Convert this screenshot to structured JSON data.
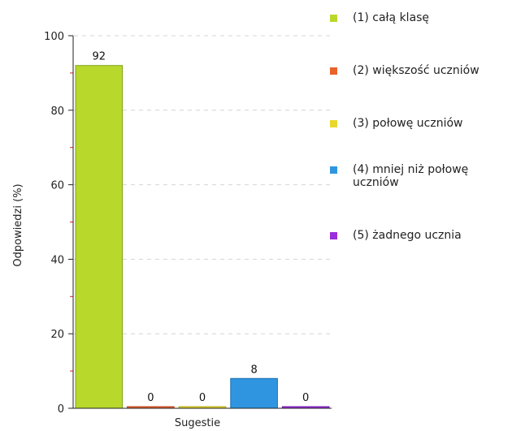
{
  "chart_data": {
    "type": "bar",
    "xlabel": "Sugestie",
    "ylabel": "Odpowiedzi (%)",
    "ylim": [
      0,
      100
    ],
    "yticks": [
      0,
      20,
      40,
      60,
      80,
      100
    ],
    "grid": true,
    "legend_position": "right",
    "series": [
      {
        "name": "(1) całą klasę",
        "value": 92,
        "label": "92",
        "color": "#b8d82c",
        "edge": "#7fa314"
      },
      {
        "name": "(2) większość uczniów",
        "value": 0,
        "label": "0",
        "color": "#e8622a",
        "edge": "#b8411a"
      },
      {
        "name": "(3) połowę uczniów",
        "value": 0,
        "label": "0",
        "color": "#e8d82c",
        "edge": "#b4a414"
      },
      {
        "name": "(4) mniej niż połowę uczniów",
        "value": 8,
        "label": "8",
        "color": "#2f95e0",
        "edge": "#1a6fb0"
      },
      {
        "name": "(5) żadnego ucznia",
        "value": 0,
        "label": "0",
        "color": "#9b2ddb",
        "edge": "#6f16a8"
      }
    ]
  }
}
